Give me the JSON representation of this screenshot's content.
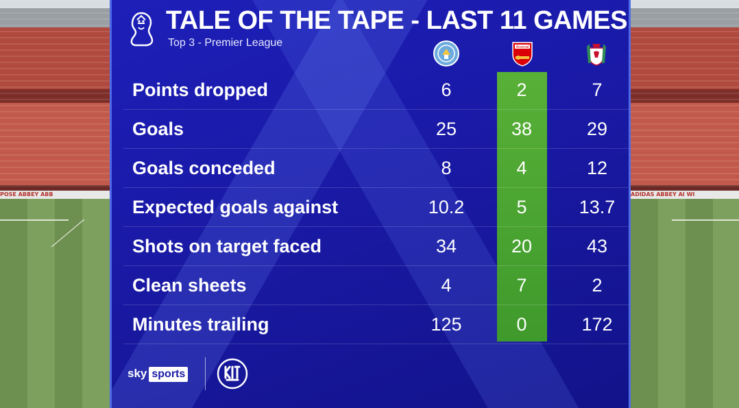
{
  "header": {
    "title": "TALE OF THE TAPE - LAST 11 GAMES",
    "subtitle": "Top 3 - Premier League"
  },
  "teams": [
    {
      "name": "Manchester City",
      "crest_icon": "man-city-crest-icon",
      "color": "#6cabdd"
    },
    {
      "name": "Arsenal",
      "crest_icon": "arsenal-crest-icon",
      "color": "#db0007",
      "crest_text": "Arsenal"
    },
    {
      "name": "Liverpool",
      "crest_icon": "liverpool-crest-icon",
      "color": "#c8102e"
    }
  ],
  "stats": [
    {
      "label": "Points dropped",
      "city": "6",
      "arsenal": "2",
      "liverpool": "7"
    },
    {
      "label": "Goals",
      "city": "25",
      "arsenal": "38",
      "liverpool": "29"
    },
    {
      "label": "Goals conceded",
      "city": "8",
      "arsenal": "4",
      "liverpool": "12"
    },
    {
      "label": "Expected goals against",
      "city": "10.2",
      "arsenal": "5",
      "liverpool": "13.7"
    },
    {
      "label": "Shots on target faced",
      "city": "34",
      "arsenal": "20",
      "liverpool": "43"
    },
    {
      "label": "Clean sheets",
      "city": "4",
      "arsenal": "7",
      "liverpool": "2"
    },
    {
      "label": "Minutes trailing",
      "city": "125",
      "arsenal": "0",
      "liverpool": "172"
    }
  ],
  "highlight_color": "#4fa832",
  "footer": {
    "sky": "sky",
    "sports": "sports",
    "kickout_icon": "kick-it-out-logo-icon",
    "kickout_text": "KICK IT OUT"
  },
  "background": {
    "hoarding_left": "POSE   ABBEY   ABB",
    "hoarding_right": "ADIDAS   ABBEY   AI WI"
  }
}
